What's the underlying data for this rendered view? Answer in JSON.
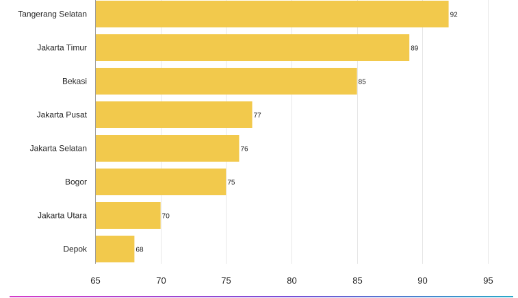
{
  "chart_data": {
    "type": "bar",
    "orientation": "horizontal",
    "categories": [
      "Tangerang Selatan",
      "Jakarta Timur",
      "Bekasi",
      "Jakarta Pusat",
      "Jakarta Selatan",
      "Bogor",
      "Jakarta Utara",
      "Depok"
    ],
    "values": [
      92,
      89,
      85,
      77,
      76,
      75,
      70,
      68
    ],
    "value_labels": [
      "92",
      "89",
      "85",
      "77",
      "76",
      "75",
      "70",
      "68"
    ],
    "xlim": [
      65,
      95
    ],
    "x_ticks": [
      65,
      70,
      75,
      80,
      85,
      90,
      95
    ],
    "x_tick_labels": [
      "65",
      "70",
      "75",
      "80",
      "85",
      "90",
      "95"
    ],
    "grid": true,
    "bar_color": "#f2c94c",
    "footer_gradient": [
      "#d63cc8",
      "#7b4dd6",
      "#2aa8c9"
    ]
  }
}
